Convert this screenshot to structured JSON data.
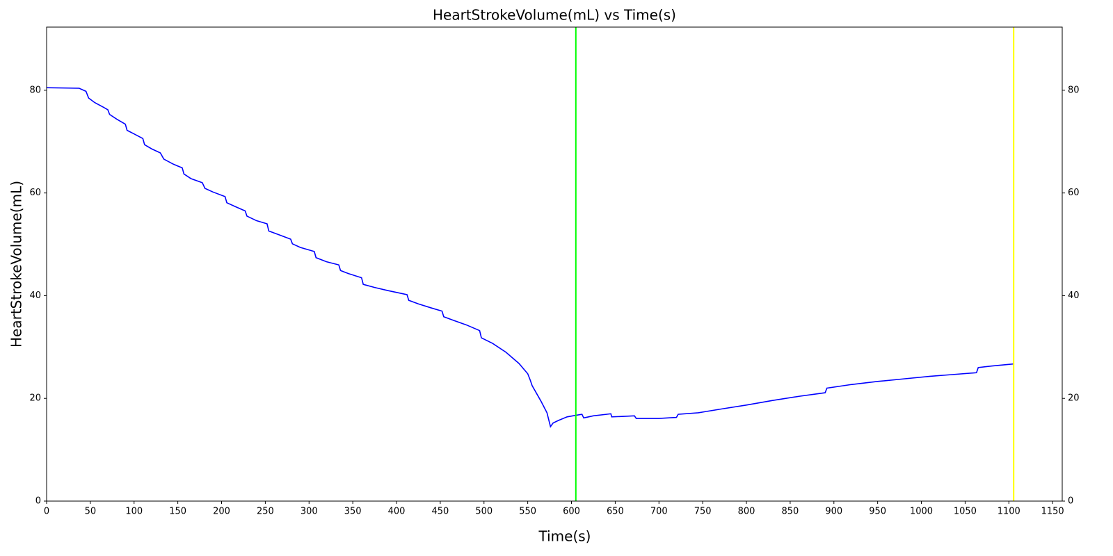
{
  "chart_data": {
    "type": "line",
    "title": "HeartStrokeVolume(mL) vs Time(s)",
    "xlabel": "Time(s)",
    "ylabel": "HeartStrokeVolume(mL)",
    "x": [
      0,
      37,
      45,
      48,
      55,
      65,
      70,
      72,
      80,
      90,
      92,
      100,
      110,
      112,
      120,
      130,
      134,
      145,
      155,
      157,
      165,
      178,
      181,
      190,
      204,
      206,
      215,
      227,
      229,
      240,
      252,
      254,
      265,
      279,
      281,
      290,
      306,
      308,
      320,
      334,
      336,
      345,
      360,
      362,
      375,
      390,
      412,
      414,
      425,
      440,
      452,
      454,
      465,
      480,
      495,
      497,
      510,
      525,
      540,
      550,
      553,
      555,
      565,
      572,
      576,
      579,
      585,
      595,
      605,
      612,
      614,
      625,
      640,
      645,
      646,
      660,
      672,
      674,
      700,
      720,
      722,
      745,
      770,
      800,
      830,
      860,
      890,
      892,
      920,
      950,
      980,
      1010,
      1040,
      1063,
      1065,
      1080,
      1105
    ],
    "values": [
      80.5,
      80.4,
      79.8,
      78.5,
      77.6,
      76.7,
      76.2,
      75.3,
      74.4,
      73.4,
      72.2,
      71.5,
      70.6,
      69.4,
      68.6,
      67.8,
      66.6,
      65.6,
      64.9,
      63.7,
      62.8,
      62.0,
      60.9,
      60.2,
      59.3,
      58.1,
      57.4,
      56.5,
      55.5,
      54.6,
      54.0,
      52.6,
      51.9,
      51.0,
      50.1,
      49.4,
      48.6,
      47.4,
      46.6,
      46.0,
      44.9,
      44.3,
      43.5,
      42.2,
      41.6,
      41.0,
      40.2,
      39.1,
      38.4,
      37.6,
      37.0,
      35.9,
      35.2,
      34.3,
      33.2,
      31.8,
      30.7,
      29.0,
      26.8,
      24.8,
      23.5,
      22.5,
      19.5,
      17.2,
      14.5,
      15.2,
      15.7,
      16.4,
      16.7,
      16.9,
      16.2,
      16.6,
      16.9,
      17.0,
      16.4,
      16.5,
      16.6,
      16.1,
      16.1,
      16.3,
      16.9,
      17.2,
      17.9,
      18.7,
      19.6,
      20.4,
      21.1,
      22.0,
      22.7,
      23.3,
      23.8,
      24.3,
      24.7,
      25.0,
      26.0,
      26.3,
      26.7
    ],
    "color": "#0000ff",
    "vlines": [
      {
        "x": 605,
        "color": "#00ff00"
      },
      {
        "x": 1105.5,
        "color": "#ffff00"
      }
    ],
    "xlim": [
      0,
      1161
    ],
    "xticks": [
      0,
      50,
      100,
      150,
      200,
      250,
      300,
      350,
      400,
      450,
      500,
      550,
      600,
      650,
      700,
      750,
      800,
      850,
      900,
      950,
      1000,
      1050,
      1100,
      1150
    ],
    "ylim": [
      0,
      92.3
    ],
    "yticks": [
      0,
      20,
      40,
      60,
      80
    ],
    "y2lim": [
      0,
      92.3
    ],
    "y2ticks": [
      0,
      20,
      40,
      60,
      80
    ],
    "grid": false
  }
}
